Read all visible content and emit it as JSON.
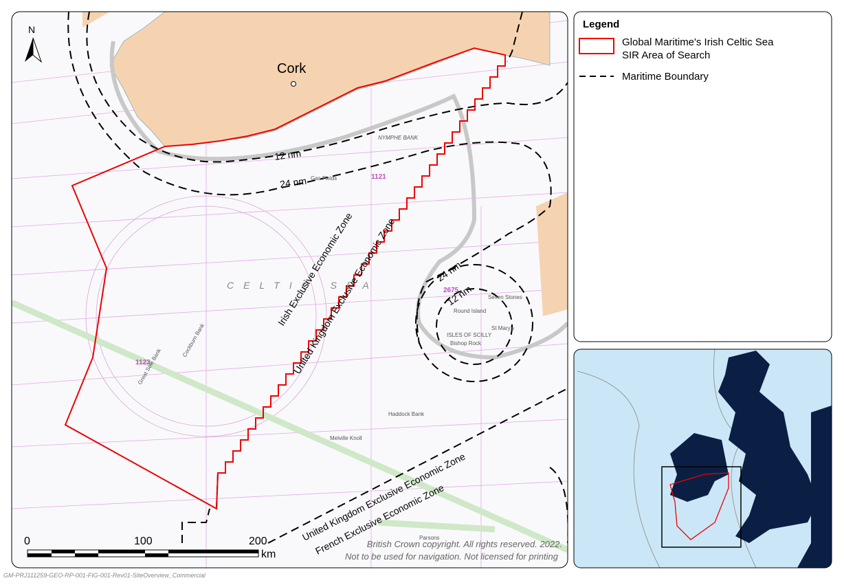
{
  "map": {
    "north_arrow": "N",
    "places": [
      "Cork",
      "NYMPHE BANK",
      "Gas Fields",
      "ISLES OF SCILLY",
      "CELTIC SEA",
      "1121",
      "1123",
      "2675",
      "Cockburn Bank",
      "Great Sole Bank",
      "Haddock Bank",
      "Melville Knoll",
      "Round Island",
      "Seven Stones",
      "St Mary's",
      "Bishop Rock",
      "Parsons"
    ],
    "boundary_labels": {
      "irish_12nm": "12 nm",
      "irish_24nm": "24 nm",
      "scilly_24nm": "24 nm",
      "scilly_12nm": "12 nm"
    },
    "zone_labels": [
      "Irish Exclusive Economic Zone",
      "United Kingdom Exclusive Economic Zone",
      "United Kingdom Exclusive Economic Zone",
      "French Exclusive Economic Zone"
    ],
    "scale_bar": {
      "ticks": [
        "0",
        "100",
        "200"
      ],
      "unit": "km"
    },
    "copyright": [
      "British Crown copyright. All rights reserved. 2022.",
      "Not to be used for navigation. Not licensed for printing"
    ]
  },
  "legend": {
    "title": "Legend",
    "items": [
      "Global Maritime's Irish Celtic Sea SIR Area of Search",
      "Maritime Boundary"
    ]
  },
  "footer": "GM-PRJ111259-GEO-RP-001-FIG-001-Rev01-SiteOverview_Commercial"
}
